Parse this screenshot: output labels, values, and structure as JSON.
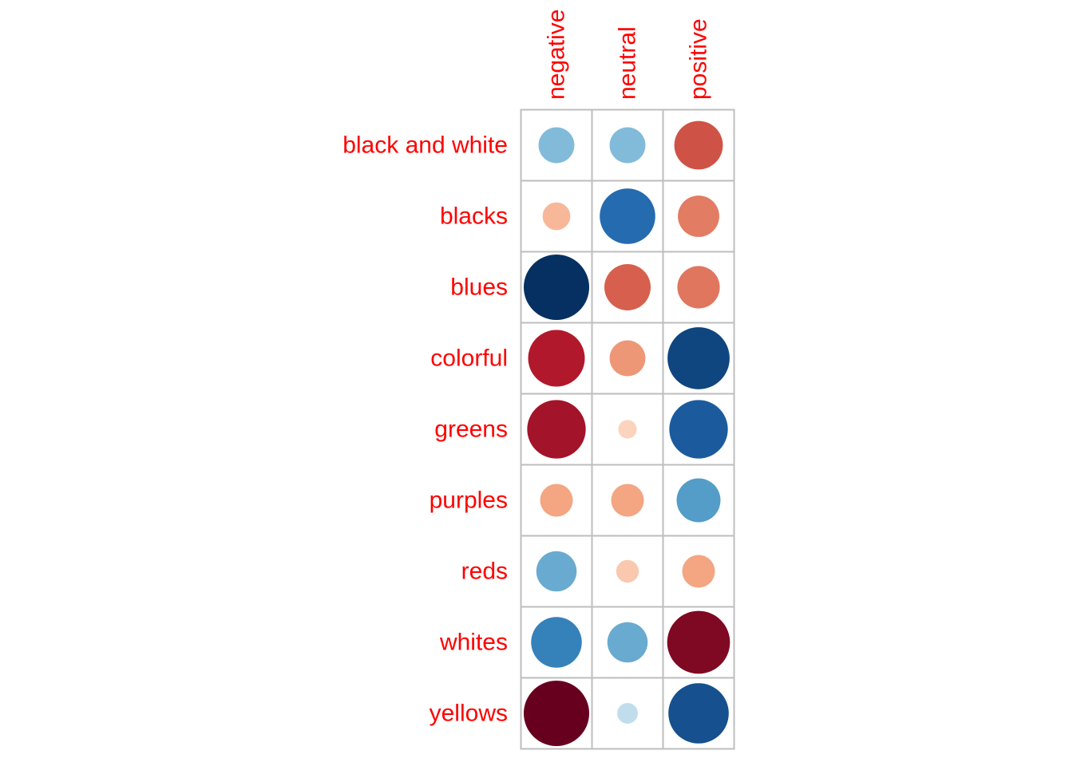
{
  "chart_data": {
    "type": "heatmap",
    "rows": [
      "black and white",
      "blacks",
      "blues",
      "colorful",
      "greens",
      "purples",
      "reds",
      "whites",
      "yellows"
    ],
    "columns": [
      "negative",
      "neutral",
      "positive"
    ],
    "values": [
      [
        -0.3,
        -0.3,
        0.55
      ],
      [
        0.18,
        -0.72,
        0.4
      ],
      [
        -1.0,
        0.5,
        0.42
      ],
      [
        0.75,
        0.3,
        -0.9
      ],
      [
        0.8,
        0.08,
        -0.8
      ],
      [
        0.25,
        0.25,
        -0.45
      ],
      [
        -0.38,
        0.12,
        0.25
      ],
      [
        -0.6,
        -0.38,
        0.92
      ],
      [
        1.0,
        -0.1,
        -0.85
      ]
    ],
    "color_scale": {
      "min": -1,
      "max": 1,
      "negative_color": "#053061",
      "mid_color": "#f7f7f7",
      "positive_color": "#67001f"
    },
    "label_color": "#ff0000",
    "grid_color": "#bebebe",
    "legend": "none"
  }
}
